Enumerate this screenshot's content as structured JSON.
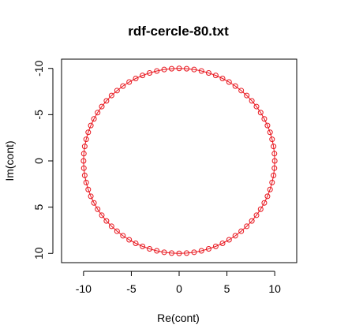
{
  "chart_data": {
    "type": "scatter",
    "title": "rdf-cercle-80.txt",
    "xlabel": "Re(cont)",
    "ylabel": "Im(cont)",
    "xlim": [
      -12.3,
      12.3
    ],
    "ylim": [
      -11.0,
      11.0
    ],
    "y_axis_reversed": true,
    "x_ticks": [
      -10,
      -5,
      0,
      5,
      10
    ],
    "y_ticks": [
      -10,
      -5,
      0,
      5,
      10
    ],
    "x_tick_labels": [
      "-10",
      "-5",
      "0",
      "5",
      "10"
    ],
    "y_tick_labels": [
      "-10",
      "-5",
      "0",
      "5",
      "10"
    ],
    "grid": false,
    "legend": "none",
    "series": [
      {
        "point_count": 80,
        "shape": "circle",
        "radius": 10,
        "center": [
          0,
          0
        ],
        "marker": "open-circle",
        "line": "solid",
        "color": "#e8141c"
      }
    ]
  },
  "colors": {
    "series": "#e8141c",
    "axes": "#000000",
    "background": "#ffffff"
  }
}
